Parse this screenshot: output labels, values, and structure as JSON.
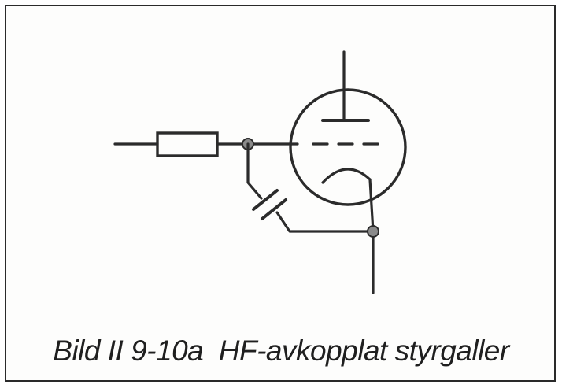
{
  "figure": {
    "caption": "Bild II 9-10a  HF-avkopplat styrgaller"
  },
  "colors": {
    "ink": "#2b2b2b",
    "paper": "#fdfdfc",
    "frame": "#2a2a2a"
  },
  "components": [
    "input-wire",
    "resistor",
    "grid-junction",
    "capacitor",
    "triode-tube",
    "cathode-junction",
    "output-wire"
  ]
}
